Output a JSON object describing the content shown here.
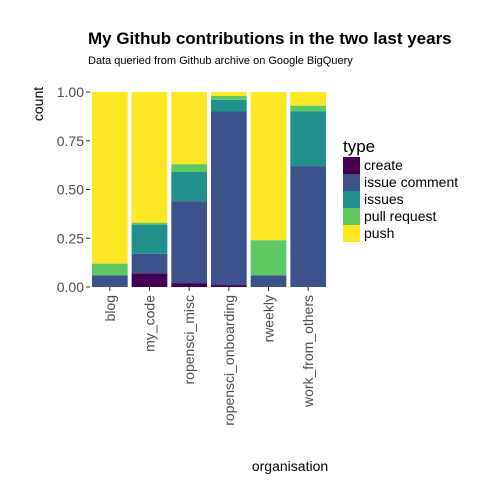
{
  "chart_data": {
    "type": "bar",
    "stacked": "percent",
    "title": "My Github contributions in the two last years",
    "subtitle": "Data queried from Github archive on Google BigQuery",
    "xlabel": "organisation",
    "ylabel": "count",
    "categories": [
      "blog",
      "my_code",
      "ropensci_misc",
      "ropensci_onboarding",
      "rweekly",
      "work_from_others"
    ],
    "ylim": [
      0,
      1
    ],
    "yticks": [
      "0.00",
      "0.25",
      "0.50",
      "0.75",
      "1.00"
    ],
    "legend_title": "type",
    "legend_position": "right",
    "grid": false,
    "series": [
      {
        "name": "create",
        "color": "#440154",
        "values": [
          0.0,
          0.07,
          0.02,
          0.01,
          0.0,
          0.0
        ]
      },
      {
        "name": "issue comment",
        "color": "#3b528b",
        "values": [
          0.06,
          0.1,
          0.42,
          0.89,
          0.06,
          0.62
        ]
      },
      {
        "name": "issues",
        "color": "#21908c",
        "values": [
          0.0,
          0.15,
          0.15,
          0.06,
          0.0,
          0.28
        ]
      },
      {
        "name": "pull request",
        "color": "#5dc863",
        "values": [
          0.06,
          0.01,
          0.04,
          0.02,
          0.18,
          0.03
        ]
      },
      {
        "name": "push",
        "color": "#fde725",
        "values": [
          0.88,
          0.67,
          0.37,
          0.02,
          0.76,
          0.07
        ]
      }
    ]
  }
}
